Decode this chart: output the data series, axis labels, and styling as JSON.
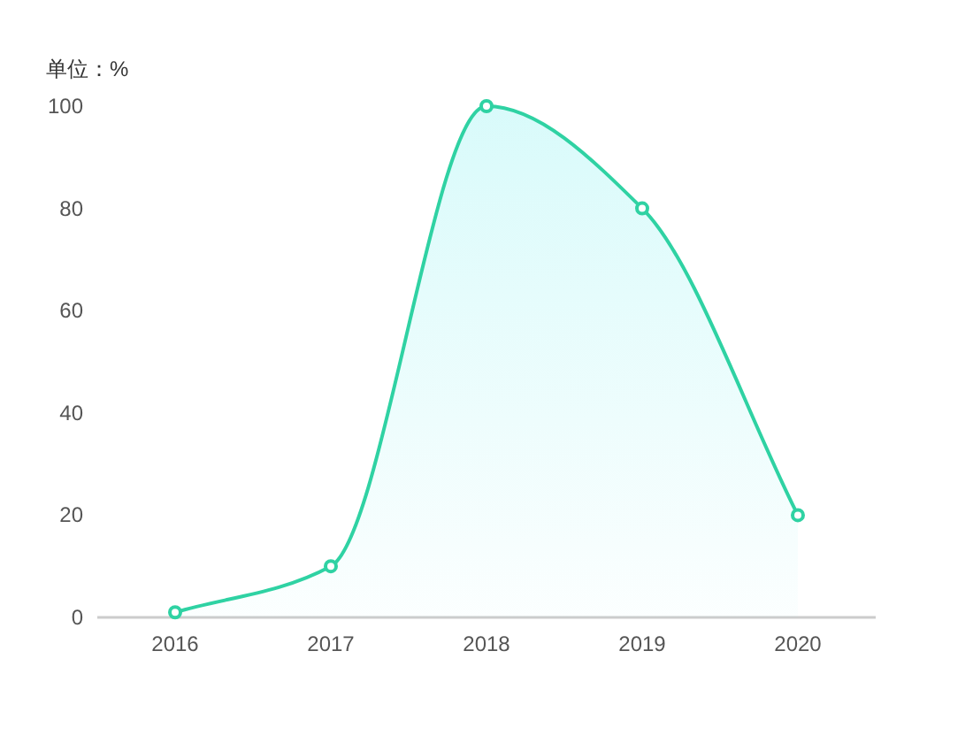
{
  "chart_data": {
    "type": "area",
    "ylabel": "单位：%",
    "categories": [
      "2016",
      "2017",
      "2018",
      "2019",
      "2020"
    ],
    "series": [
      {
        "color": "#2fd2a3",
        "values": [
          1,
          10,
          100,
          80,
          20
        ]
      }
    ],
    "ylim": [
      0,
      100
    ],
    "yticks": [
      0,
      20,
      40,
      60,
      80,
      100
    ],
    "grid": false,
    "marker": "circle"
  }
}
